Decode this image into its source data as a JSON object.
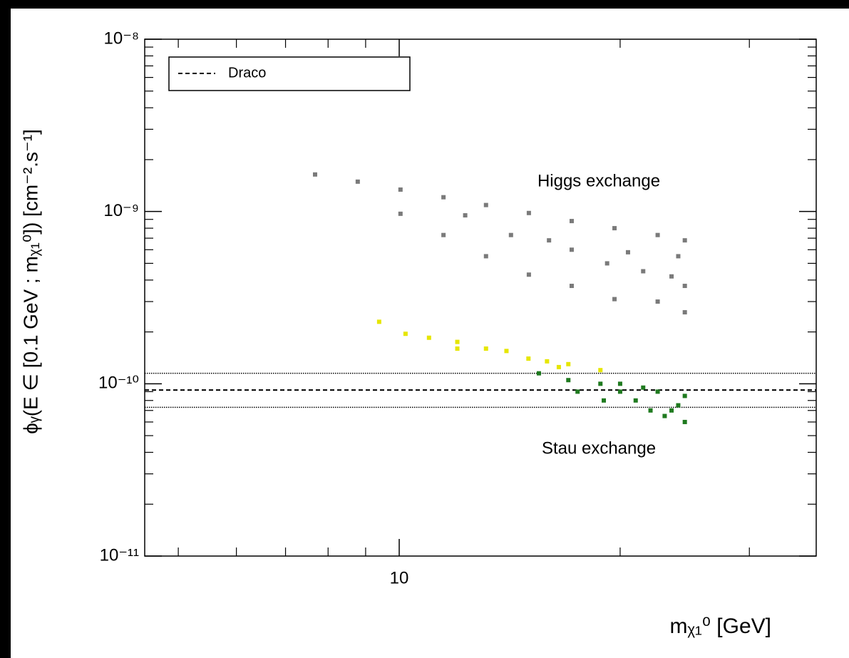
{
  "chart_data": {
    "type": "scatter",
    "xlabel": "mᵪ₁⁰ [GeV]",
    "ylabel": "ϕᵧ(E ∈ [0.1 GeV ; mᵪ₁⁰]) [cm⁻².s⁻¹]",
    "xlog": true,
    "ylog": true,
    "xlim": [
      4.5,
      37
    ],
    "ylim": [
      1e-11,
      1e-08
    ],
    "xticks": [
      10
    ],
    "xminorticks": [
      5,
      6,
      7,
      8,
      9,
      20,
      30
    ],
    "yticks": [
      {
        "value": 1e-11,
        "label": "10⁻¹¹"
      },
      {
        "value": 1e-10,
        "label": "10⁻¹⁰"
      },
      {
        "value": 1e-09,
        "label": "10⁻⁹"
      },
      {
        "value": 1e-08,
        "label": "10⁻⁸"
      }
    ],
    "yminorticks": [
      2e-11,
      3e-11,
      4e-11,
      5e-11,
      6e-11,
      7e-11,
      8e-11,
      9e-11,
      2e-10,
      3e-10,
      4e-10,
      5e-10,
      6e-10,
      7e-10,
      8e-10,
      9e-10,
      2e-09,
      3e-09,
      4e-09,
      5e-09,
      6e-09,
      7e-09,
      8e-09,
      9e-09
    ],
    "reference_lines": [
      {
        "name": "Draco",
        "value": 9.2e-11,
        "style": "dashed"
      },
      {
        "value": 1.15e-10,
        "style": "dotted"
      },
      {
        "value": 7.3e-11,
        "style": "dotted"
      }
    ],
    "annotations": [
      {
        "text": "Higgs exchange",
        "color": "#8c8c8c"
      },
      {
        "text": "Stau exchange",
        "color": "#14a040"
      }
    ],
    "series": [
      {
        "color": "#7a7a7a",
        "x": [
          7.68,
          8.78,
          10.04,
          11.49,
          13.13,
          15.02,
          17.18,
          19.65,
          22.5,
          24.5,
          10.04,
          11.49,
          13.13,
          15.02,
          17.18,
          19.65,
          22.5,
          24.5,
          24.5,
          21.5,
          17.18,
          14.2,
          24,
          19.2,
          12.3,
          16,
          20.5,
          23.5
        ],
        "values": [
          1.64e-09,
          1.49e-09,
          1.34e-09,
          1.21e-09,
          1.09e-09,
          9.8e-10,
          8.8e-10,
          8e-10,
          7.3e-10,
          6.8e-10,
          9.7e-10,
          7.3e-10,
          5.5e-10,
          4.3e-10,
          3.7e-10,
          3.1e-10,
          3e-10,
          2.6e-10,
          3.7e-10,
          4.5e-10,
          6e-10,
          7.3e-10,
          5.5e-10,
          5e-10,
          9.5e-10,
          6.8e-10,
          5.8e-10,
          4.2e-10
        ]
      },
      {
        "color": "#e6e600",
        "x": [
          9.39,
          10.98,
          12.0,
          13.13,
          14.0,
          15.9,
          17.0,
          18.8,
          12.0,
          15.0,
          10.2,
          16.5
        ],
        "values": [
          2.29e-10,
          1.85e-10,
          1.75e-10,
          1.6e-10,
          1.55e-10,
          1.35e-10,
          1.3e-10,
          1.2e-10,
          1.6e-10,
          1.4e-10,
          1.95e-10,
          1.25e-10
        ]
      },
      {
        "color": "#1f7a1f",
        "x": [
          15.5,
          17.0,
          18.8,
          20.0,
          21.0,
          22.5,
          23.5,
          24.5,
          24.5,
          24.0,
          22.0,
          19.0,
          17.5,
          20.0,
          23.0,
          21.5
        ],
        "values": [
          1.15e-10,
          1.05e-10,
          1e-10,
          9e-11,
          8e-11,
          9e-11,
          7e-11,
          8.5e-11,
          6e-11,
          7.5e-11,
          7e-11,
          8e-11,
          9e-11,
          1e-10,
          6.5e-11,
          9.5e-11
        ]
      }
    ]
  }
}
